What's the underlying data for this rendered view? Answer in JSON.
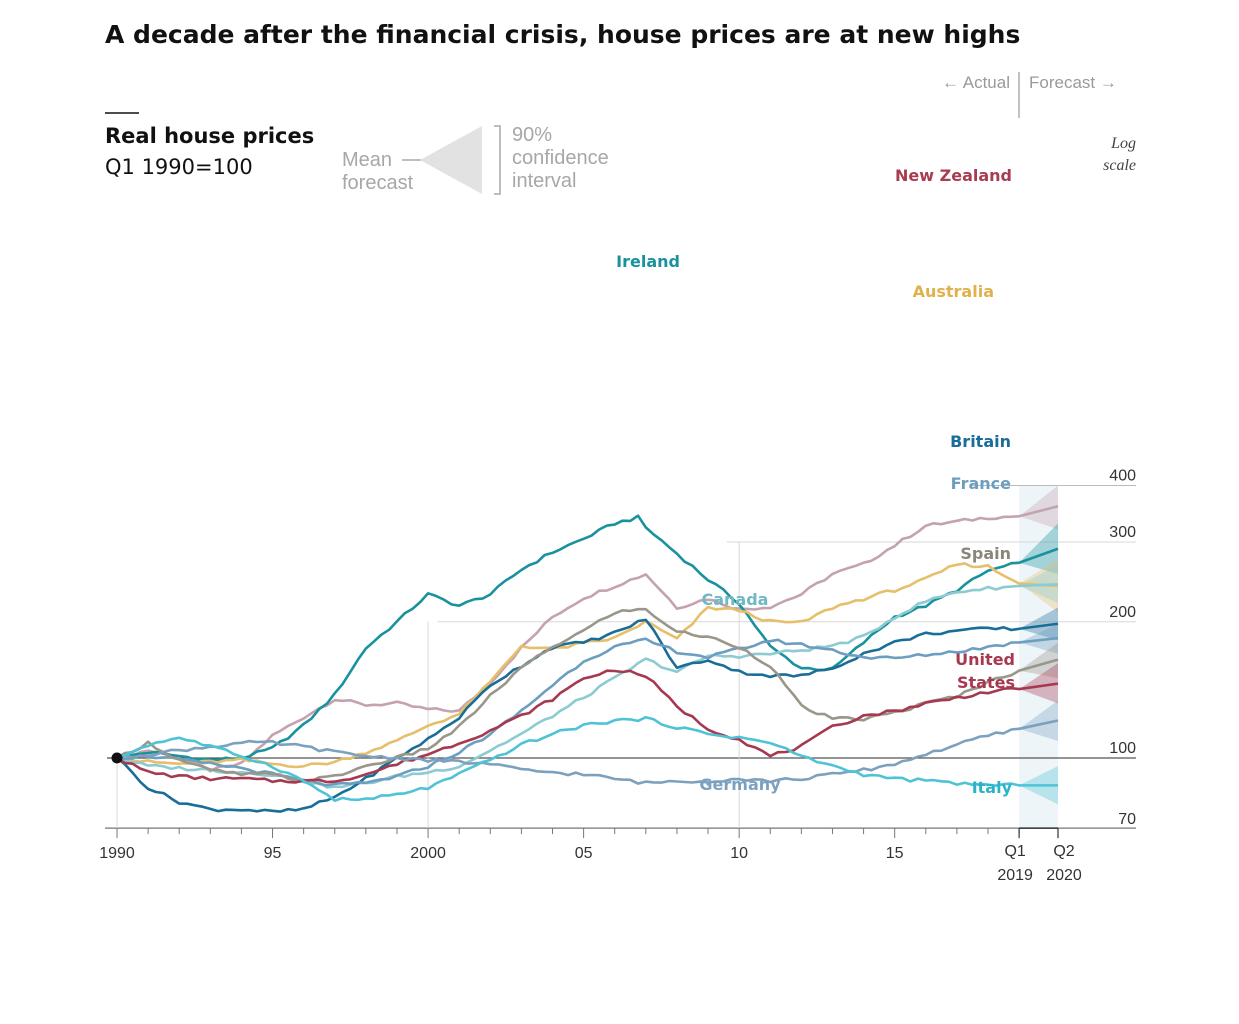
{
  "title": "A decade after the financial crisis, house prices are at new highs",
  "subtitle_line1": "Real house prices",
  "subtitle_line2": "Q1 1990=100",
  "legend": {
    "mean": "Mean",
    "forecast": "forecast",
    "ci_line1": "90%",
    "ci_line2": "confidence",
    "ci_line3": "interval"
  },
  "actual_label": "← Actual",
  "forecast_label": "Forecast →",
  "log_scale_line1": "Log",
  "log_scale_line2": "scale",
  "colors": {
    "new_zealand": "#c4a3ae",
    "new_zealand_label": "#a63d50",
    "ireland": "#1a929e",
    "australia": "#e6bf6b",
    "canada": "#8ccbd1",
    "britain": "#1a6d98",
    "france": "#6d9ec0",
    "spain": "#9a968a",
    "united_states": "#a6384f",
    "germany": "#7ca1bf",
    "italy": "#4fc3d6",
    "grid": "#d8d8d8",
    "forecast_band": "#eef5f9"
  },
  "chart_data": {
    "type": "line",
    "title": "A decade after the financial crisis, house prices are at new highs",
    "ylabel": "Real house prices, Q1 1990=100",
    "yscale": "log",
    "ylim": [
      70,
      400
    ],
    "xlim": [
      1990,
      2020.25
    ],
    "x_ticks": [
      {
        "value": 1990,
        "label": "1990"
      },
      {
        "value": 1995,
        "label": "95"
      },
      {
        "value": 2000,
        "label": "2000"
      },
      {
        "value": 2005,
        "label": "05"
      },
      {
        "value": 2010,
        "label": "10"
      },
      {
        "value": 2015,
        "label": "15"
      }
    ],
    "forecast_ticks": {
      "q1": "Q1",
      "q1_year": "2019",
      "q2": "Q2",
      "q2_year": "2020"
    },
    "y_ticks": [
      70,
      100,
      200,
      300,
      400
    ],
    "forecast_start": 2019,
    "forecast_end": 2020.25,
    "series": [
      {
        "key": "new_zealand",
        "name": "New Zealand",
        "x": [
          1990,
          1991,
          1992,
          1993,
          1994,
          1995,
          1996,
          1997,
          1998,
          1999,
          2000,
          2001,
          2002,
          2003,
          2004,
          2005,
          2006,
          2007,
          2008,
          2009,
          2010,
          2011,
          2012,
          2013,
          2014,
          2015,
          2016,
          2017,
          2018,
          2019
        ],
        "y": [
          100,
          104,
          100,
          94,
          97,
          112,
          123,
          135,
          131,
          132,
          128,
          127,
          147,
          175,
          205,
          226,
          240,
          255,
          215,
          225,
          213,
          216,
          230,
          255,
          268,
          295,
          326,
          333,
          340,
          342
        ],
        "forecast": [
          360,
          320,
          400
        ]
      },
      {
        "key": "ireland",
        "name": "Ireland",
        "x": [
          1990,
          1991,
          1992,
          1993,
          1994,
          1995,
          1996,
          1997,
          1998,
          1999,
          2000,
          2001,
          2002,
          2003,
          2004,
          2005,
          2006,
          2006.75,
          2007,
          2008,
          2009,
          2010,
          2011,
          2012,
          2013,
          2014,
          2015,
          2016,
          2017,
          2018,
          2019
        ],
        "y": [
          100,
          103,
          101,
          99,
          100,
          105,
          118,
          138,
          175,
          200,
          230,
          217,
          230,
          261,
          285,
          305,
          330,
          340,
          323,
          283,
          248,
          220,
          176,
          158,
          157,
          180,
          205,
          217,
          235,
          259,
          270
        ],
        "forecast": [
          290,
          255,
          330
        ]
      },
      {
        "key": "australia",
        "name": "Australia",
        "x": [
          1990,
          1991,
          1992,
          1993,
          1994,
          1995,
          1996,
          1997,
          1998,
          1999,
          2000,
          2001,
          2002,
          2003,
          2004,
          2005,
          2006,
          2007,
          2008,
          2009,
          2010,
          2011,
          2012,
          2013,
          2014,
          2015,
          2016,
          2017,
          2018,
          2019
        ],
        "y": [
          100,
          98,
          97,
          98,
          99,
          97,
          96,
          98,
          103,
          109,
          118,
          125,
          147,
          177,
          174,
          179,
          184,
          200,
          183,
          215,
          212,
          200,
          199,
          215,
          225,
          235,
          248,
          268,
          265,
          243
        ],
        "forecast": [
          240,
          210,
          275
        ]
      },
      {
        "key": "canada",
        "name": "Canada",
        "x": [
          1990,
          1991,
          1992,
          1993,
          1994,
          1995,
          1996,
          1997,
          1998,
          1999,
          2000,
          2001,
          2002,
          2003,
          2004,
          2005,
          2006,
          2007,
          2008,
          2009,
          2010,
          2011,
          2012,
          2013,
          2014,
          2015,
          2016,
          2017,
          2018,
          2019
        ],
        "y": [
          100,
          96,
          95,
          94,
          93,
          92,
          89,
          86,
          88,
          91,
          93,
          96,
          104,
          113,
          124,
          136,
          150,
          165,
          155,
          168,
          168,
          170,
          173,
          177,
          185,
          205,
          222,
          233,
          237,
          240
        ],
        "forecast": [
          242,
          220,
          268
        ]
      },
      {
        "key": "britain",
        "name": "Britain",
        "x": [
          1990,
          1991,
          1992,
          1993,
          1994,
          1995,
          1996,
          1997,
          1998,
          1999,
          2000,
          2001,
          2002,
          2003,
          2004,
          2005,
          2006,
          2007,
          2008,
          2009,
          2010,
          2011,
          2012,
          2013,
          2014,
          2015,
          2016,
          2017,
          2018,
          2019
        ],
        "y": [
          100,
          86,
          80,
          77,
          77,
          76,
          77,
          82,
          90,
          100,
          110,
          123,
          145,
          160,
          176,
          180,
          189,
          203,
          158,
          165,
          155,
          152,
          152,
          158,
          170,
          180,
          188,
          191,
          193,
          193
        ],
        "forecast": [
          198,
          182,
          215
        ]
      },
      {
        "key": "france",
        "name": "France",
        "x": [
          1990,
          1991,
          1992,
          1993,
          1994,
          1995,
          1996,
          1997,
          1998,
          1999,
          2000,
          2001,
          2002,
          2003,
          2004,
          2005,
          2006,
          2007,
          2008,
          2009,
          2010,
          2011,
          2012,
          2013,
          2014,
          2015,
          2016,
          2017,
          2018,
          2019
        ],
        "y": [
          100,
          101,
          99,
          97,
          95,
          92,
          89,
          87,
          88,
          91,
          96,
          103,
          113,
          127,
          145,
          164,
          176,
          182,
          172,
          167,
          174,
          182,
          178,
          173,
          167,
          166,
          169,
          172,
          176,
          180
        ],
        "forecast": [
          184,
          170,
          198
        ]
      },
      {
        "key": "spain",
        "name": "Spain",
        "x": [
          1990,
          1991,
          1992,
          1993,
          1994,
          1995,
          1996,
          1997,
          1998,
          1999,
          2000,
          2001,
          2002,
          2003,
          2004,
          2005,
          2006,
          2007,
          2008,
          2009,
          2010,
          2011,
          2012,
          2013,
          2014,
          2015,
          2016,
          2017,
          2018,
          2019
        ],
        "y": [
          100,
          108,
          99,
          94,
          92,
          92,
          89,
          91,
          96,
          100,
          105,
          117,
          137,
          158,
          176,
          191,
          210,
          213,
          190,
          185,
          176,
          160,
          130,
          122,
          122,
          126,
          132,
          137,
          147,
          156
        ],
        "forecast": [
          165,
          150,
          180
        ]
      },
      {
        "key": "united_states",
        "name": "United States",
        "x": [
          1990,
          1991,
          1992,
          1993,
          1994,
          1995,
          1996,
          1997,
          1998,
          1999,
          2000,
          2001,
          2002,
          2003,
          2004,
          2005,
          2006,
          2007,
          2008,
          2009,
          2010,
          2011,
          2012,
          2013,
          2014,
          2015,
          2016,
          2017,
          2018,
          2019
        ],
        "y": [
          100,
          93,
          91,
          90,
          90,
          89,
          89,
          89,
          92,
          97,
          102,
          108,
          115,
          124,
          135,
          150,
          157,
          152,
          130,
          116,
          110,
          101,
          106,
          117,
          124,
          127,
          132,
          136,
          140,
          142
        ],
        "forecast": [
          146,
          132,
          162
        ]
      },
      {
        "key": "germany",
        "name": "Germany",
        "x": [
          1990,
          1991,
          1992,
          1993,
          1994,
          1995,
          1996,
          1997,
          1998,
          1999,
          2000,
          2001,
          2002,
          2003,
          2004,
          2005,
          2006,
          2007,
          2008,
          2009,
          2010,
          2011,
          2012,
          2013,
          2014,
          2015,
          2016,
          2017,
          2018,
          2019
        ],
        "y": [
          100,
          102,
          104,
          106,
          108,
          108,
          106,
          103,
          101,
          100,
          99,
          98,
          97,
          94,
          93,
          92,
          90,
          88,
          89,
          89,
          90,
          89,
          90,
          92,
          94,
          97,
          102,
          107,
          112,
          116
        ],
        "forecast": [
          121,
          109,
          134
        ]
      },
      {
        "key": "italy",
        "name": "Italy",
        "x": [
          1990,
          1991,
          1992,
          1993,
          1994,
          1995,
          1996,
          1997,
          1998,
          1999,
          2000,
          2001,
          2002,
          2003,
          2004,
          2005,
          2006,
          2007,
          2008,
          2009,
          2010,
          2011,
          2012,
          2013,
          2014,
          2015,
          2016,
          2017,
          2018,
          2019
        ],
        "y": [
          100,
          107,
          111,
          106,
          101,
          96,
          89,
          81,
          81,
          83,
          86,
          92,
          99,
          107,
          113,
          118,
          121,
          122,
          117,
          113,
          111,
          108,
          101,
          96,
          92,
          90,
          89,
          88,
          87,
          87
        ],
        "forecast": [
          87,
          79,
          96
        ]
      }
    ]
  },
  "labels": {
    "new_zealand": "New Zealand",
    "ireland": "Ireland",
    "australia": "Australia",
    "canada": "Canada",
    "britain": "Britain",
    "france": "France",
    "spain": "Spain",
    "united_states_1": "United",
    "united_states_2": "States",
    "germany": "Germany",
    "italy": "Italy"
  }
}
